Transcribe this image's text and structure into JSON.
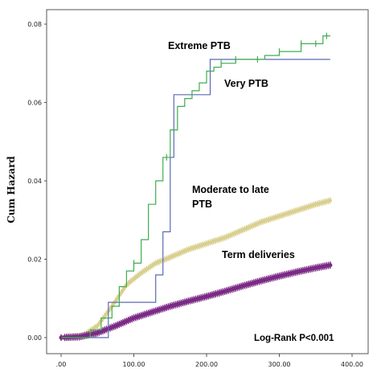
{
  "chart_data": {
    "type": "line",
    "ylabel": "Cum Hazard",
    "xlabel": "",
    "xlim": [
      0,
      400
    ],
    "ylim": [
      0,
      0.08
    ],
    "x_ticks": [
      0,
      100,
      200,
      300,
      400
    ],
    "x_tick_labels": [
      ".00",
      "100.00",
      "200.00",
      "300.00",
      "400.00"
    ],
    "y_ticks": [
      0,
      0.02,
      0.04,
      0.06,
      0.08
    ],
    "y_tick_labels": [
      "0.00",
      "0.02",
      "0.04",
      "0.06",
      "0.08"
    ],
    "grid": false,
    "annotations": {
      "extreme_ptb": "Extreme PTB",
      "very_ptb": "Very PTB",
      "moderate_line1": "Moderate to late",
      "moderate_line2": "PTB",
      "term": "Term deliveries",
      "logrank": "Log-Rank P<0.001"
    },
    "series": [
      {
        "key": "extreme",
        "color": "#5b6ab3",
        "step": true,
        "x": [
          0,
          60,
          65,
          125,
          130,
          140,
          150,
          155,
          165,
          180,
          190,
          205,
          370
        ],
        "y": [
          0,
          0,
          0.009,
          0.009,
          0.016,
          0.027,
          0.046,
          0.062,
          0.062,
          0.062,
          0.062,
          0.071,
          0.071
        ]
      },
      {
        "key": "very",
        "color": "#3fae4f",
        "step": true,
        "x": [
          0,
          25,
          40,
          55,
          70,
          80,
          90,
          100,
          110,
          120,
          130,
          140,
          150,
          160,
          170,
          180,
          190,
          200,
          210,
          220,
          240,
          260,
          280,
          300,
          320,
          330,
          340,
          350,
          360,
          370
        ],
        "y": [
          0,
          0,
          0.002,
          0.005,
          0.008,
          0.013,
          0.017,
          0.019,
          0.025,
          0.034,
          0.04,
          0.046,
          0.053,
          0.059,
          0.061,
          0.063,
          0.065,
          0.068,
          0.069,
          0.07,
          0.071,
          0.071,
          0.072,
          0.073,
          0.073,
          0.075,
          0.075,
          0.075,
          0.077,
          0.077
        ]
      },
      {
        "key": "moderate",
        "color": "#d9cf8e",
        "step": false,
        "x": [
          0,
          30,
          50,
          70,
          90,
          110,
          130,
          150,
          175,
          200,
          225,
          250,
          275,
          300,
          325,
          350,
          370
        ],
        "y": [
          0,
          0.0005,
          0.003,
          0.008,
          0.0135,
          0.0165,
          0.019,
          0.0205,
          0.0225,
          0.024,
          0.0255,
          0.0275,
          0.0295,
          0.031,
          0.0325,
          0.034,
          0.035
        ]
      },
      {
        "key": "term",
        "color": "#7b2a86",
        "step": false,
        "x": [
          0,
          25,
          50,
          75,
          100,
          125,
          150,
          175,
          200,
          225,
          250,
          275,
          300,
          325,
          350,
          370
        ],
        "y": [
          0,
          0.0002,
          0.0012,
          0.003,
          0.005,
          0.0065,
          0.008,
          0.0093,
          0.0105,
          0.0118,
          0.0132,
          0.0145,
          0.0157,
          0.0168,
          0.0178,
          0.0185
        ]
      }
    ]
  }
}
